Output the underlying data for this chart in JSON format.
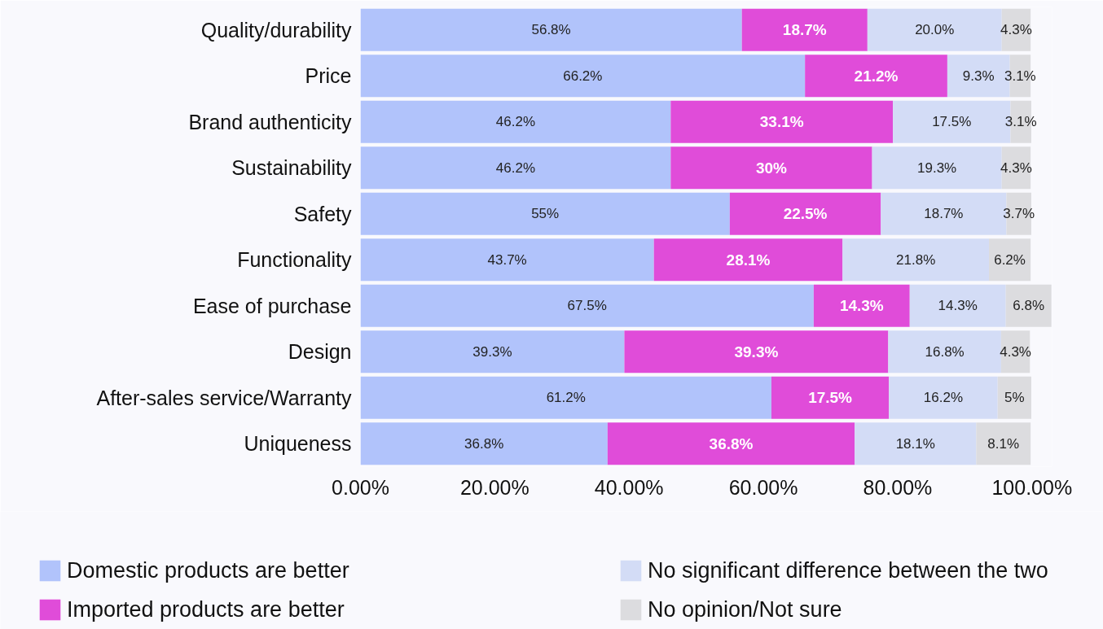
{
  "chart_data": {
    "type": "bar",
    "orientation": "horizontal",
    "stacked": true,
    "categories": [
      "Quality/durability",
      "Price",
      "Brand authenticity",
      "Sustainability",
      "Safety",
      "Functionality",
      "Ease of purchase",
      "Design",
      "After-sales service/Warranty",
      "Uniqueness"
    ],
    "series": [
      {
        "name": "Domestic products are better",
        "color": "#b1c3fb",
        "values": [
          56.8,
          66.2,
          46.2,
          46.2,
          55,
          43.7,
          67.5,
          39.3,
          61.2,
          36.8
        ],
        "value_labels": [
          "56.8%",
          "66.2%",
          "46.2%",
          "46.2%",
          "55%",
          "43.7%",
          "67.5%",
          "39.3%",
          "61.2%",
          "36.8%"
        ]
      },
      {
        "name": "Imported products are better",
        "color": "#e04cd9",
        "values": [
          18.7,
          21.2,
          33.1,
          30,
          22.5,
          28.1,
          14.3,
          39.3,
          17.5,
          36.8
        ],
        "value_labels": [
          "18.7%",
          "21.2%",
          "33.1%",
          "30%",
          "22.5%",
          "28.1%",
          "14.3%",
          "39.3%",
          "17.5%",
          "36.8%"
        ]
      },
      {
        "name": "No significant difference between the two",
        "color": "#d3dcf6",
        "values": [
          20.0,
          9.3,
          17.5,
          19.3,
          18.7,
          21.8,
          14.3,
          16.8,
          16.2,
          18.1
        ],
        "value_labels": [
          "20.0%",
          "9.3%",
          "17.5%",
          "19.3%",
          "18.7%",
          "21.8%",
          "14.3%",
          "16.8%",
          "16.2%",
          "18.1%"
        ]
      },
      {
        "name": "No opinion/Not sure",
        "color": "#dcdcdf",
        "values": [
          4.3,
          3.1,
          3.1,
          4.3,
          3.7,
          6.2,
          6.8,
          4.3,
          5,
          8.1
        ],
        "value_labels": [
          "4.3%",
          "3.1%",
          "3.1%",
          "4.3%",
          "3.7%",
          "6.2%",
          "6.8%",
          "4.3%",
          "5%",
          "8.1%"
        ]
      }
    ],
    "xlim": [
      0,
      103
    ],
    "xticks": [
      {
        "value": 0,
        "label": "0.00%"
      },
      {
        "value": 20,
        "label": "20.00%"
      },
      {
        "value": 40,
        "label": "40.00%"
      },
      {
        "value": 60,
        "label": "60.00%"
      },
      {
        "value": 80,
        "label": "80.00%"
      },
      {
        "value": 100,
        "label": "100.00%"
      }
    ],
    "grid": false,
    "legend": "bottom"
  }
}
